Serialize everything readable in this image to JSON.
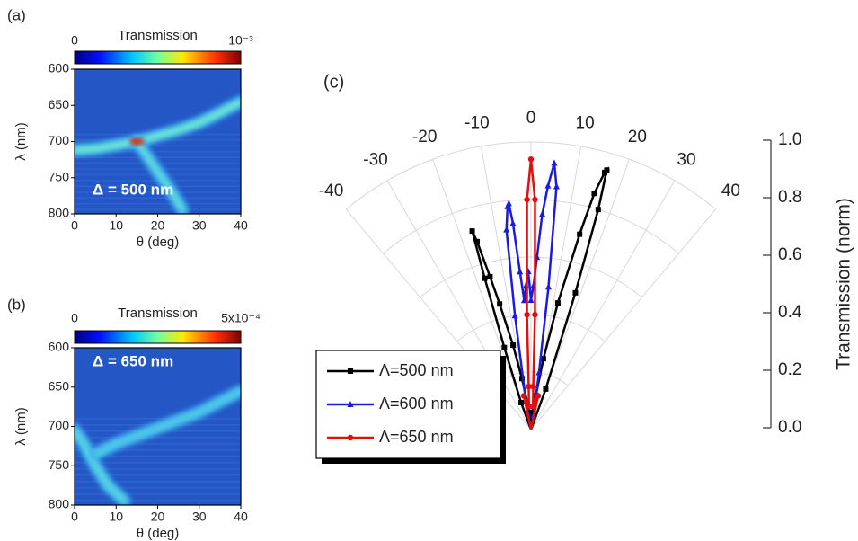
{
  "chart_data": [
    {
      "type": "heatmap",
      "panel_label": "(a)",
      "colorbar_label": "Transmission",
      "cticks": [
        0,
        {
          "value": 0.001,
          "label": "10⁻³"
        }
      ],
      "annotation": "Δ = 500 nm",
      "xlabel": "θ (deg)",
      "ylabel": "λ (nm)",
      "xlim": [
        0,
        40
      ],
      "xticks": [
        0,
        10,
        20,
        30,
        40
      ],
      "ylim": [
        600,
        800
      ],
      "yticks": [
        600,
        650,
        700,
        750,
        800
      ],
      "y_inverted": true,
      "background_color": "#2456c6",
      "ridge_color": "#7ef2c8",
      "ridges": [
        {
          "x": [
            0,
            5,
            10,
            15,
            20,
            25,
            30,
            35,
            40
          ],
          "y": [
            712,
            710,
            705,
            700,
            692,
            684,
            674,
            660,
            645
          ]
        },
        {
          "x": [
            15,
            18,
            21,
            24,
            26
          ],
          "y": [
            700,
            725,
            750,
            775,
            795
          ]
        }
      ],
      "peak": {
        "x": 15,
        "y": 700
      }
    },
    {
      "type": "heatmap",
      "panel_label": "(b)",
      "colorbar_label": "Transmission",
      "cticks": [
        0,
        {
          "value": 0.0005,
          "label": "5x10⁻⁴"
        }
      ],
      "annotation": "Δ = 650 nm",
      "xlabel": "θ (deg)",
      "ylabel": "λ (nm)",
      "xlim": [
        0,
        40
      ],
      "xticks": [
        0,
        10,
        20,
        30,
        40
      ],
      "ylim": [
        600,
        800
      ],
      "yticks": [
        600,
        650,
        700,
        750,
        800
      ],
      "y_inverted": true,
      "background_color": "#2456c6",
      "ridge_color": "#5fd8dc",
      "ridges": [
        {
          "x": [
            0,
            2,
            5,
            8,
            12
          ],
          "y": [
            705,
            720,
            750,
            775,
            795
          ]
        },
        {
          "x": [
            5,
            10,
            20,
            30,
            40
          ],
          "y": [
            735,
            722,
            702,
            682,
            655
          ]
        }
      ]
    },
    {
      "type": "polar",
      "panel_label": "(c)",
      "thetalim": [
        -40,
        40
      ],
      "thetaticks": [
        -40,
        -30,
        -20,
        -10,
        0,
        10,
        20,
        30,
        40
      ],
      "rlim": [
        0,
        1
      ],
      "rticks": [
        {
          "value": 0,
          "label": "0.0"
        },
        0.2,
        0.4,
        0.6,
        0.8,
        {
          "value": 1,
          "label": "1.0"
        }
      ],
      "rlabel": "Transmission (norm)",
      "grid": true,
      "series": [
        {
          "name": "Λ=500 nm",
          "color": "#000000",
          "marker": "square",
          "theta": [
            -20,
            -18,
            -17,
            -16.5,
            -16,
            -15,
            -14,
            -12,
            -10,
            -8,
            -5,
            0,
            5,
            8,
            10,
            12,
            14,
            15,
            16,
            16.3,
            17,
            18,
            20
          ],
          "values": [
            0.1,
            0.3,
            0.55,
            0.72,
            0.68,
            0.55,
            0.45,
            0.3,
            0.18,
            0.1,
            0.05,
            0.03,
            0.06,
            0.12,
            0.25,
            0.45,
            0.7,
            0.85,
            0.93,
            0.94,
            0.8,
            0.5,
            0.15
          ]
        },
        {
          "name": "Λ=600 nm",
          "color": "#1a1ae6",
          "marker": "triangle",
          "theta": [
            -10,
            -8,
            -7,
            -6,
            -5.6,
            -5,
            -4,
            -3,
            -2,
            -1,
            0,
            1,
            2,
            3,
            4,
            5,
            6,
            7,
            8,
            10
          ],
          "values": [
            0.1,
            0.4,
            0.7,
            0.78,
            0.79,
            0.72,
            0.55,
            0.45,
            0.5,
            0.55,
            0.45,
            0.5,
            0.6,
            0.75,
            0.85,
            0.93,
            0.85,
            0.5,
            0.2,
            0.05
          ]
        },
        {
          "name": "Λ=650 nm",
          "color": "#e01010",
          "marker": "circle",
          "theta": [
            -12,
            -8,
            -5,
            -3,
            -2,
            -1,
            0,
            1,
            2,
            3,
            5,
            8,
            12
          ],
          "values": [
            0.12,
            0.1,
            0.08,
            0.15,
            0.4,
            0.8,
            0.94,
            0.8,
            0.4,
            0.15,
            0.08,
            0.1,
            0.12
          ]
        }
      ]
    }
  ]
}
